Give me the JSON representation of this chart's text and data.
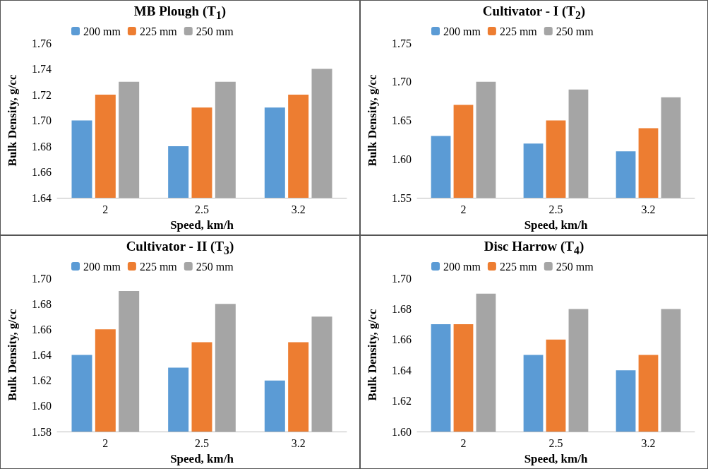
{
  "chart_data": [
    {
      "type": "bar",
      "title": "MB Plough (T$_{1}$)",
      "xlabel": "Speed, km/h",
      "ylabel": "Bulk Density, g/cc",
      "categories": [
        "2",
        "2.5",
        "3.2"
      ],
      "legend": "top left",
      "grid": false,
      "series": [
        {
          "name": "200 mm",
          "color": "#5b9bd5",
          "values": [
            1.7,
            1.68,
            1.71
          ]
        },
        {
          "name": "225 mm",
          "color": "#ed7d31",
          "values": [
            1.72,
            1.71,
            1.72
          ]
        },
        {
          "name": "250 mm",
          "color": "#a5a5a5",
          "values": [
            1.73,
            1.73,
            1.74
          ]
        }
      ],
      "ylim": [
        1.64,
        1.76
      ],
      "yticks": [
        1.64,
        1.66,
        {
          "value": 1.68,
          "label": "1.68"
        },
        {
          "value": 1.7,
          "label": "1.70"
        },
        1.72,
        1.74,
        1.76
      ]
    },
    {
      "type": "bar",
      "title": "Cultivator - I (T$_{2}$)",
      "xlabel": "Speed, km/h",
      "ylabel": "Bulk Density, g/cc",
      "categories": [
        "2",
        "2.5",
        "3.2"
      ],
      "legend": "top left",
      "grid": false,
      "series": [
        {
          "name": "200 mm",
          "color": "#5b9bd5",
          "values": [
            1.63,
            1.62,
            1.61
          ]
        },
        {
          "name": "225 mm",
          "color": "#ed7d31",
          "values": [
            1.67,
            1.65,
            1.64
          ]
        },
        {
          "name": "250 mm",
          "color": "#a5a5a5",
          "values": [
            1.7,
            1.69,
            1.68
          ]
        }
      ],
      "ylim": [
        1.55,
        1.75
      ],
      "yticks": [
        1.55,
        {
          "value": 1.6,
          "label": "1.60"
        },
        1.65,
        {
          "value": 1.7,
          "label": "1.70"
        },
        1.75
      ]
    },
    {
      "type": "bar",
      "title": "Cultivator - II (T$_{3}$)",
      "xlabel": "Speed, km/h",
      "ylabel": "Bulk Density, g/cc",
      "categories": [
        "2",
        "2.5",
        "3.2"
      ],
      "legend": "top left",
      "grid": false,
      "series": [
        {
          "name": "200 mm",
          "color": "#5b9bd5",
          "values": [
            1.64,
            1.63,
            1.62
          ]
        },
        {
          "name": "225 mm",
          "color": "#ed7d31",
          "values": [
            1.66,
            1.65,
            1.65
          ]
        },
        {
          "name": "250 mm",
          "color": "#a5a5a5",
          "values": [
            1.69,
            1.68,
            1.67
          ]
        }
      ],
      "ylim": [
        1.58,
        1.7
      ],
      "yticks": [
        1.58,
        {
          "value": 1.6,
          "label": "1.60"
        },
        1.62,
        1.64,
        1.66,
        1.68,
        {
          "value": 1.7,
          "label": "1.70"
        }
      ]
    },
    {
      "type": "bar",
      "title": "Disc Harrow (T$_{4}$)",
      "xlabel": "Speed, km/h",
      "ylabel": "Bulk Density, g/cc",
      "categories": [
        "2",
        "2.5",
        "3.2"
      ],
      "legend": "top left",
      "grid": false,
      "series": [
        {
          "name": "200 mm",
          "color": "#5b9bd5",
          "values": [
            1.67,
            1.65,
            1.64
          ]
        },
        {
          "name": "225 mm",
          "color": "#ed7d31",
          "values": [
            1.67,
            1.66,
            1.65
          ]
        },
        {
          "name": "250 mm",
          "color": "#a5a5a5",
          "values": [
            1.69,
            1.68,
            1.68
          ]
        }
      ],
      "ylim": [
        1.6,
        1.7
      ],
      "yticks": [
        {
          "value": 1.6,
          "label": "1.60"
        },
        1.62,
        1.64,
        1.66,
        1.68,
        {
          "value": 1.7,
          "label": "1.70"
        }
      ]
    }
  ]
}
